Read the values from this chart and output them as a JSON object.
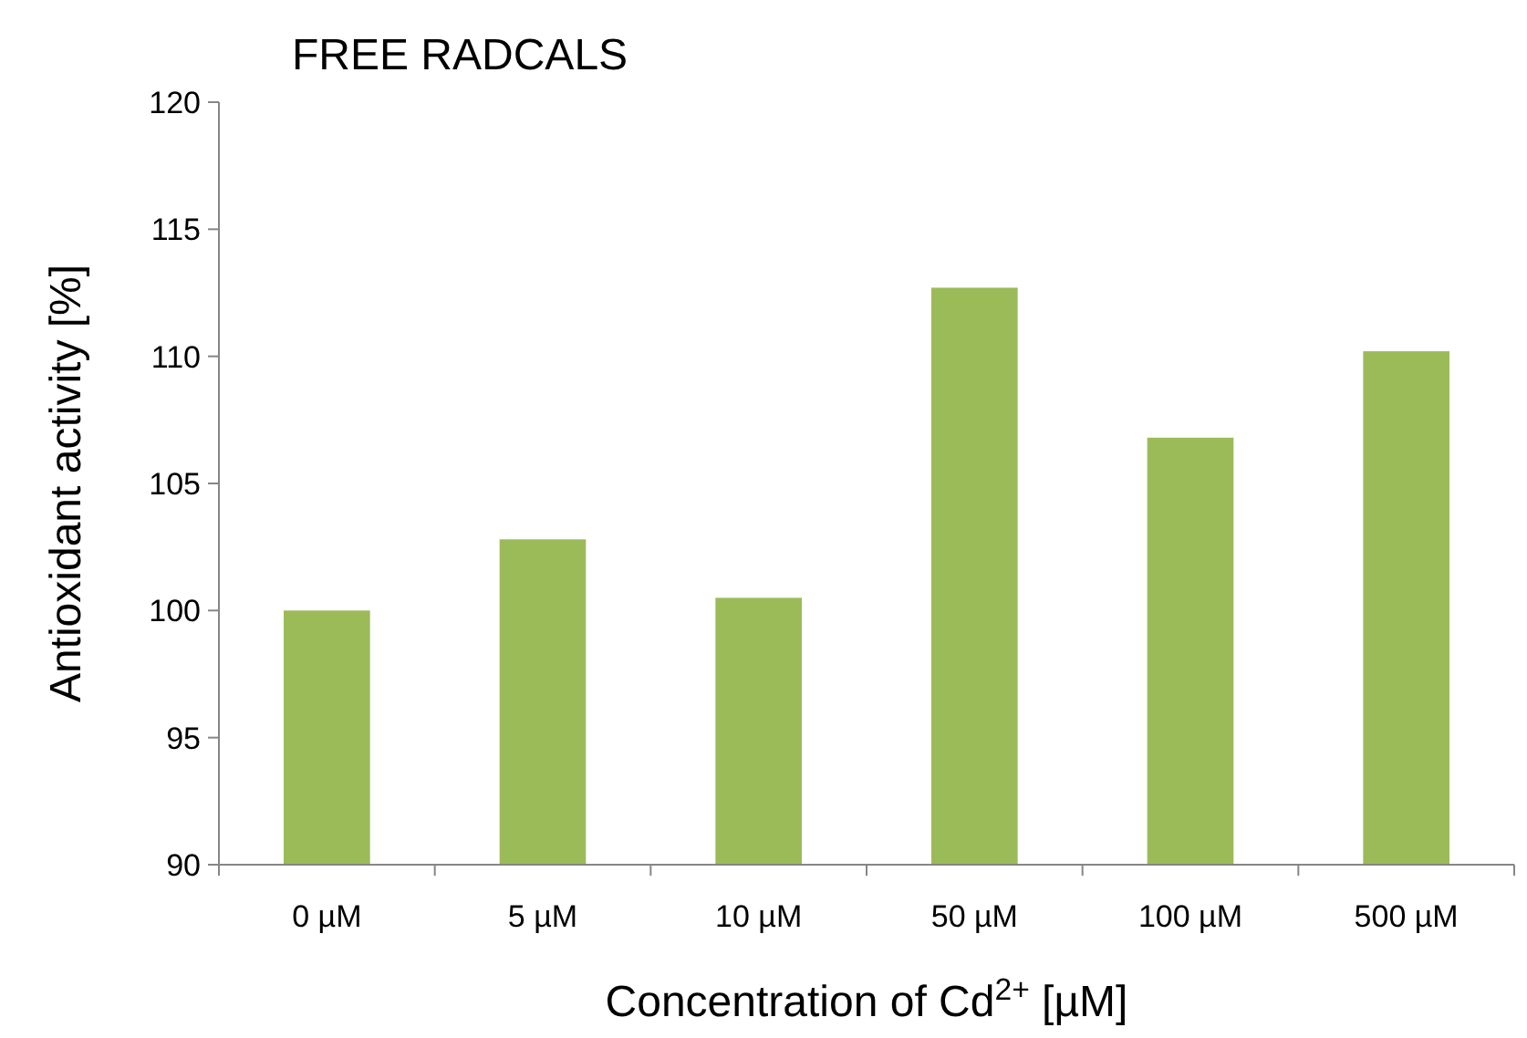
{
  "chart_data": {
    "type": "bar",
    "title": "FREE RADCALS",
    "xlabel": "Concentration of Cd$^{2+}$ [µM]",
    "ylabel": "Antioxidant activity [%]",
    "categories": [
      "0 µM",
      "5 µM",
      "10 µM",
      "50 µM",
      "100 µM",
      "500 µM"
    ],
    "values": [
      100.0,
      102.8,
      100.5,
      112.7,
      106.8,
      110.2
    ],
    "color": "#9bbb59",
    "ylim": [
      90,
      120
    ],
    "yticks": [
      90,
      95,
      100,
      105,
      110,
      115,
      120
    ],
    "grid": false
  }
}
